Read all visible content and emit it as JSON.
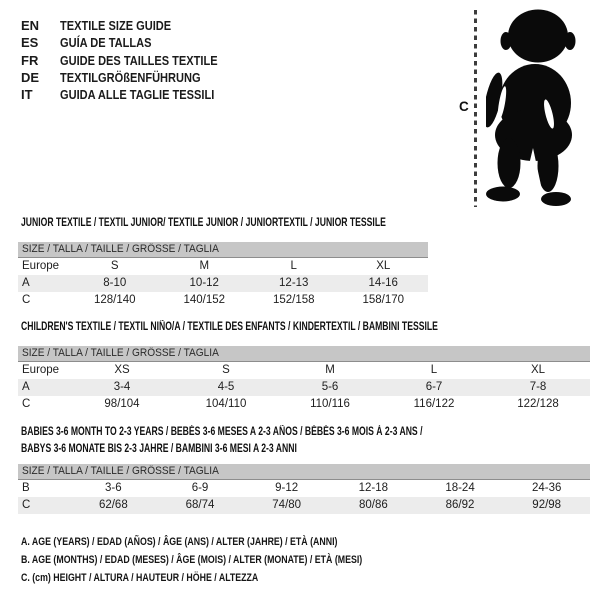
{
  "meta": {
    "background": "#ffffff",
    "header_bar_color": "#c6c6c6",
    "row_alt_color": "#ececec",
    "silhouette_color": "#0a0a0a",
    "text_color": "#1b1b1b"
  },
  "languages": [
    {
      "code": "EN",
      "label": "TEXTILE SIZE GUIDE"
    },
    {
      "code": "ES",
      "label": "GUÍA DE TALLAS"
    },
    {
      "code": "FR",
      "label": "GUIDE DES TAILLES TEXTILE"
    },
    {
      "code": "DE",
      "label": "TEXTILGRÖßENFÜHRUNG"
    },
    {
      "code": "IT",
      "label": "GUIDA ALLE TAGLIE TESSILI"
    }
  ],
  "figure": {
    "height_marker_label": "C",
    "silhouette": "toddler-standing-silhouette"
  },
  "sections": [
    {
      "title_lines": [
        "JUNIOR TEXTILE / TEXTIL JUNIOR/ TEXTILE JUNIOR / JUNIORTEXTIL / JUNIOR TESSILE"
      ],
      "size_header": "SIZE / TALLA / TAILLE / GRÖSSE / TAGLIA",
      "rows": [
        {
          "label": "Europe",
          "shaded": false,
          "values": [
            "S",
            "M",
            "L",
            "XL"
          ]
        },
        {
          "label": "A",
          "shaded": true,
          "values": [
            "8-10",
            "10-12",
            "12-13",
            "14-16"
          ]
        },
        {
          "label": "C",
          "shaded": false,
          "values": [
            "128/140",
            "140/152",
            "152/158",
            "158/170"
          ]
        }
      ]
    },
    {
      "title_lines": [
        "CHILDREN'S TEXTILE / TEXTIL NIÑO/A / TEXTILE DES ENFANTS / KINDERTEXTIL / BAMBINI TESSILE"
      ],
      "size_header": "SIZE / TALLA / TAILLE / GRÖSSE / TAGLIA",
      "rows": [
        {
          "label": "Europe",
          "shaded": false,
          "values": [
            "XS",
            "S",
            "M",
            "L",
            "XL"
          ]
        },
        {
          "label": "A",
          "shaded": true,
          "values": [
            "3-4",
            "4-5",
            "5-6",
            "6-7",
            "7-8"
          ]
        },
        {
          "label": "C",
          "shaded": false,
          "values": [
            "98/104",
            "104/110",
            "110/116",
            "116/122",
            "122/128"
          ]
        }
      ]
    },
    {
      "title_lines": [
        "BABIES 3-6 MONTH TO 2-3 YEARS / BEBÉS 3-6 MESES A 2-3 AÑOS / BÉBÉS 3-6 MOIS À 2-3 ANS /",
        "BABYS 3-6 MONATE BIS 2-3 JAHRE / BAMBINI 3-6 MESI A 2-3 ANNI"
      ],
      "size_header": "SIZE / TALLA / TAILLE / GRÖSSE / TAGLIA",
      "rows": [
        {
          "label": "B",
          "shaded": false,
          "values": [
            "3-6",
            "6-9",
            "9-12",
            "12-18",
            "18-24",
            "24-36"
          ]
        },
        {
          "label": "C",
          "shaded": true,
          "values": [
            "62/68",
            "68/74",
            "74/80",
            "80/86",
            "86/92",
            "92/98"
          ]
        }
      ]
    }
  ],
  "legend": [
    "A. AGE (YEARS) / EDAD (AÑOS) / ÂGE (ANS) / ALTER (JAHRE) / ETÀ (ANNI)",
    "B. AGE (MONTHS) / EDAD (MESES) / ÂGE (MOIS) / ALTER (MONATE) / ETÀ (MESI)",
    "C. (cm) HEIGHT / ALTURA / HAUTEUR / HÖHE / ALTEZZA"
  ]
}
